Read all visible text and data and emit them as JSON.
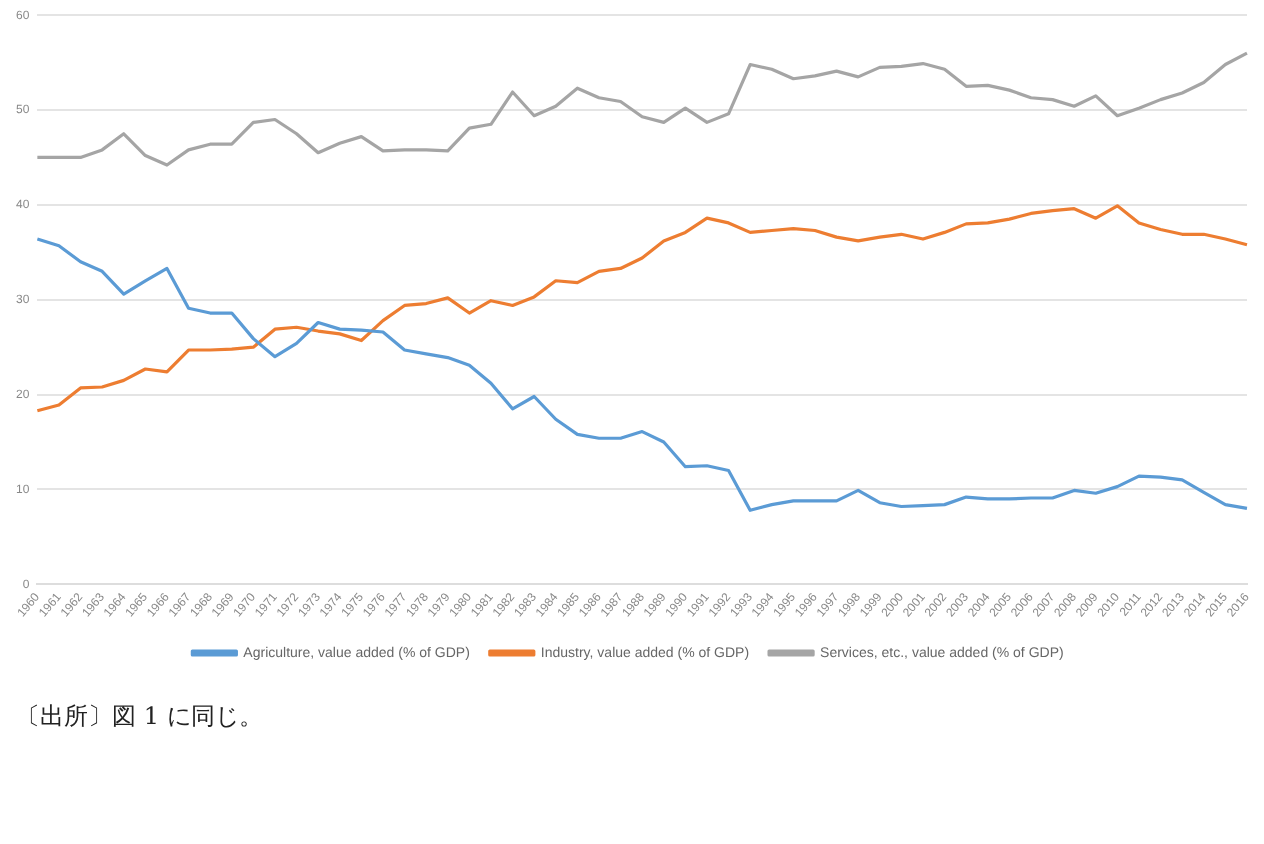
{
  "chart_data": {
    "type": "line",
    "categories": [
      "1960",
      "1961",
      "1962",
      "1963",
      "1964",
      "1965",
      "1966",
      "1967",
      "1968",
      "1969",
      "1970",
      "1971",
      "1972",
      "1973",
      "1974",
      "1975",
      "1976",
      "1977",
      "1978",
      "1979",
      "1980",
      "1981",
      "1982",
      "1983",
      "1984",
      "1985",
      "1986",
      "1987",
      "1988",
      "1989",
      "1990",
      "1991",
      "1992",
      "1993",
      "1994",
      "1995",
      "1996",
      "1997",
      "1998",
      "1999",
      "2000",
      "2001",
      "2002",
      "2003",
      "2004",
      "2005",
      "2006",
      "2007",
      "2008",
      "2009",
      "2010",
      "2011",
      "2012",
      "2013",
      "2014",
      "2015",
      "2016"
    ],
    "series": [
      {
        "name": "Agriculture, value added (% of GDP)",
        "color": "#5b9bd5",
        "values": [
          36.4,
          35.7,
          34.0,
          33.0,
          30.6,
          32.0,
          33.3,
          29.1,
          28.6,
          28.6,
          25.9,
          24.0,
          25.4,
          27.6,
          26.9,
          26.8,
          26.6,
          24.7,
          24.3,
          23.9,
          23.1,
          21.2,
          18.5,
          19.8,
          17.4,
          15.8,
          15.4,
          15.4,
          16.1,
          15.0,
          12.4,
          12.5,
          12.0,
          7.8,
          8.4,
          8.8,
          8.8,
          8.8,
          9.9,
          8.6,
          8.2,
          8.3,
          8.4,
          9.2,
          9.0,
          9.0,
          9.1,
          9.1,
          9.9,
          9.6,
          10.3,
          11.4,
          11.3,
          11.0,
          9.7,
          8.4,
          8.0
        ]
      },
      {
        "name": "Industry, value added (% of GDP)",
        "color": "#ed7d31",
        "values": [
          18.3,
          18.9,
          20.7,
          20.8,
          21.5,
          22.7,
          22.4,
          24.7,
          24.7,
          24.8,
          25.0,
          26.9,
          27.1,
          26.7,
          26.4,
          25.7,
          27.8,
          29.4,
          29.6,
          30.2,
          28.6,
          29.9,
          29.4,
          30.3,
          32.0,
          31.8,
          33.0,
          33.3,
          34.4,
          36.2,
          37.1,
          38.6,
          38.1,
          37.1,
          37.3,
          37.5,
          37.3,
          36.6,
          36.2,
          36.6,
          36.9,
          36.4,
          37.1,
          38.0,
          38.1,
          38.5,
          39.1,
          39.4,
          39.6,
          38.6,
          39.9,
          38.1,
          37.4,
          36.9,
          36.9,
          36.4,
          35.8
        ]
      },
      {
        "name": "Services, etc., value added (% of GDP)",
        "color": "#a5a5a5",
        "values": [
          45.0,
          45.0,
          45.0,
          45.8,
          47.5,
          45.2,
          44.2,
          45.8,
          46.4,
          46.4,
          48.7,
          49.0,
          47.5,
          45.5,
          46.5,
          47.2,
          45.7,
          45.8,
          45.8,
          45.7,
          48.1,
          48.5,
          51.9,
          49.4,
          50.4,
          52.3,
          51.3,
          50.9,
          49.3,
          48.7,
          50.2,
          48.7,
          49.6,
          54.8,
          54.3,
          53.3,
          53.6,
          54.1,
          53.5,
          54.5,
          54.6,
          54.9,
          54.3,
          52.5,
          52.6,
          52.1,
          51.3,
          51.1,
          50.4,
          51.5,
          49.4,
          50.2,
          51.1,
          51.8,
          52.9,
          54.8,
          56.0
        ]
      }
    ],
    "ylim": [
      0,
      60
    ],
    "yticks": [
      0,
      10,
      20,
      30,
      40,
      50,
      60
    ],
    "grid": "y",
    "legend": "bottom",
    "marker": "none",
    "line_style": "solid",
    "annotations": [
      "〔出所〕図 1 に同じ。"
    ]
  }
}
